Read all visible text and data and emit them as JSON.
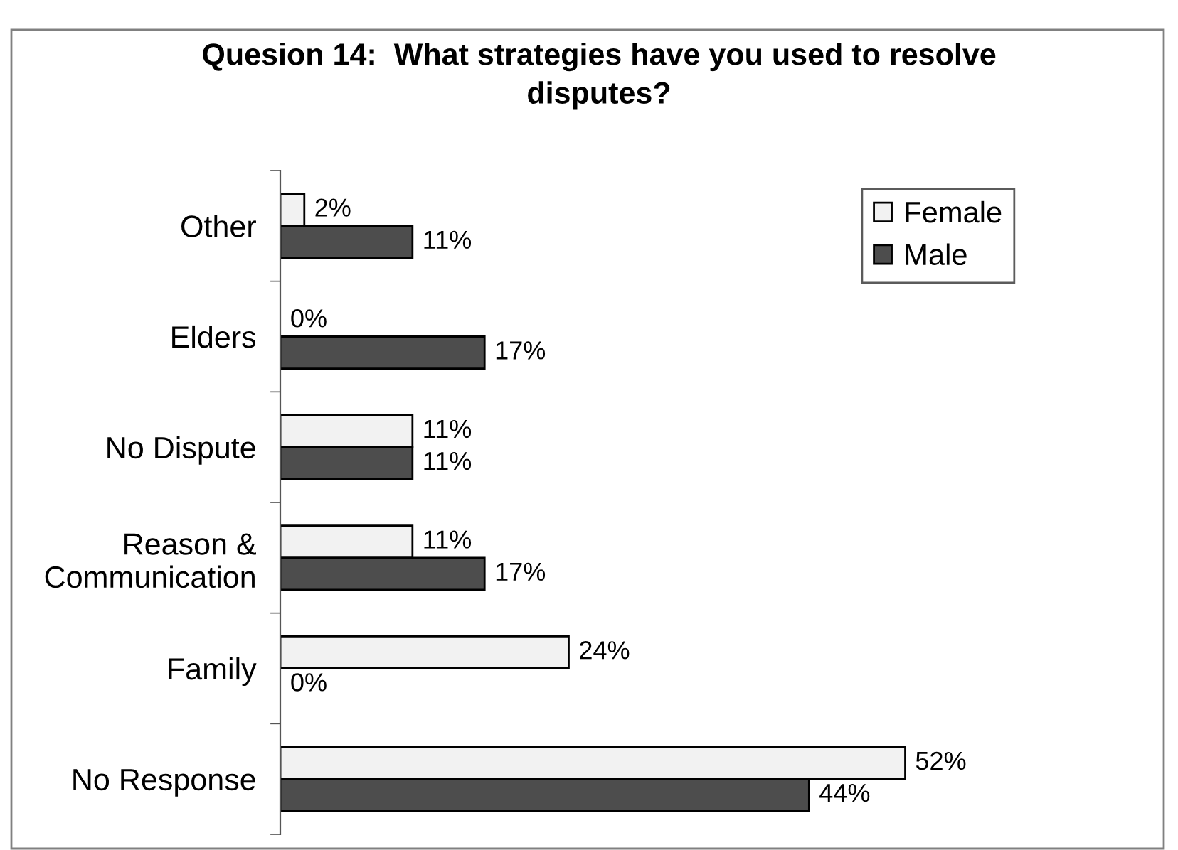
{
  "chart_data": {
    "type": "bar",
    "orientation": "horizontal",
    "title": "Quesion 14:  What strategies have you used to resolve\ndisputes?",
    "categories": [
      "Other",
      "Elders",
      "No Dispute",
      "Reason &\nCommunication",
      "Family",
      "No Response"
    ],
    "series": [
      {
        "name": "Female",
        "color": "#f2f2f2",
        "values": [
          2,
          0,
          11,
          11,
          24,
          52
        ],
        "value_labels": [
          "2%",
          "0%",
          "11%",
          "11%",
          "24%",
          "52%"
        ]
      },
      {
        "name": "Male",
        "color": "#4d4d4d",
        "values": [
          11,
          17,
          11,
          17,
          0,
          44
        ],
        "value_labels": [
          "11%",
          "17%",
          "11%",
          "17%",
          "0%",
          "44%"
        ]
      }
    ],
    "legend": "top right"
  }
}
